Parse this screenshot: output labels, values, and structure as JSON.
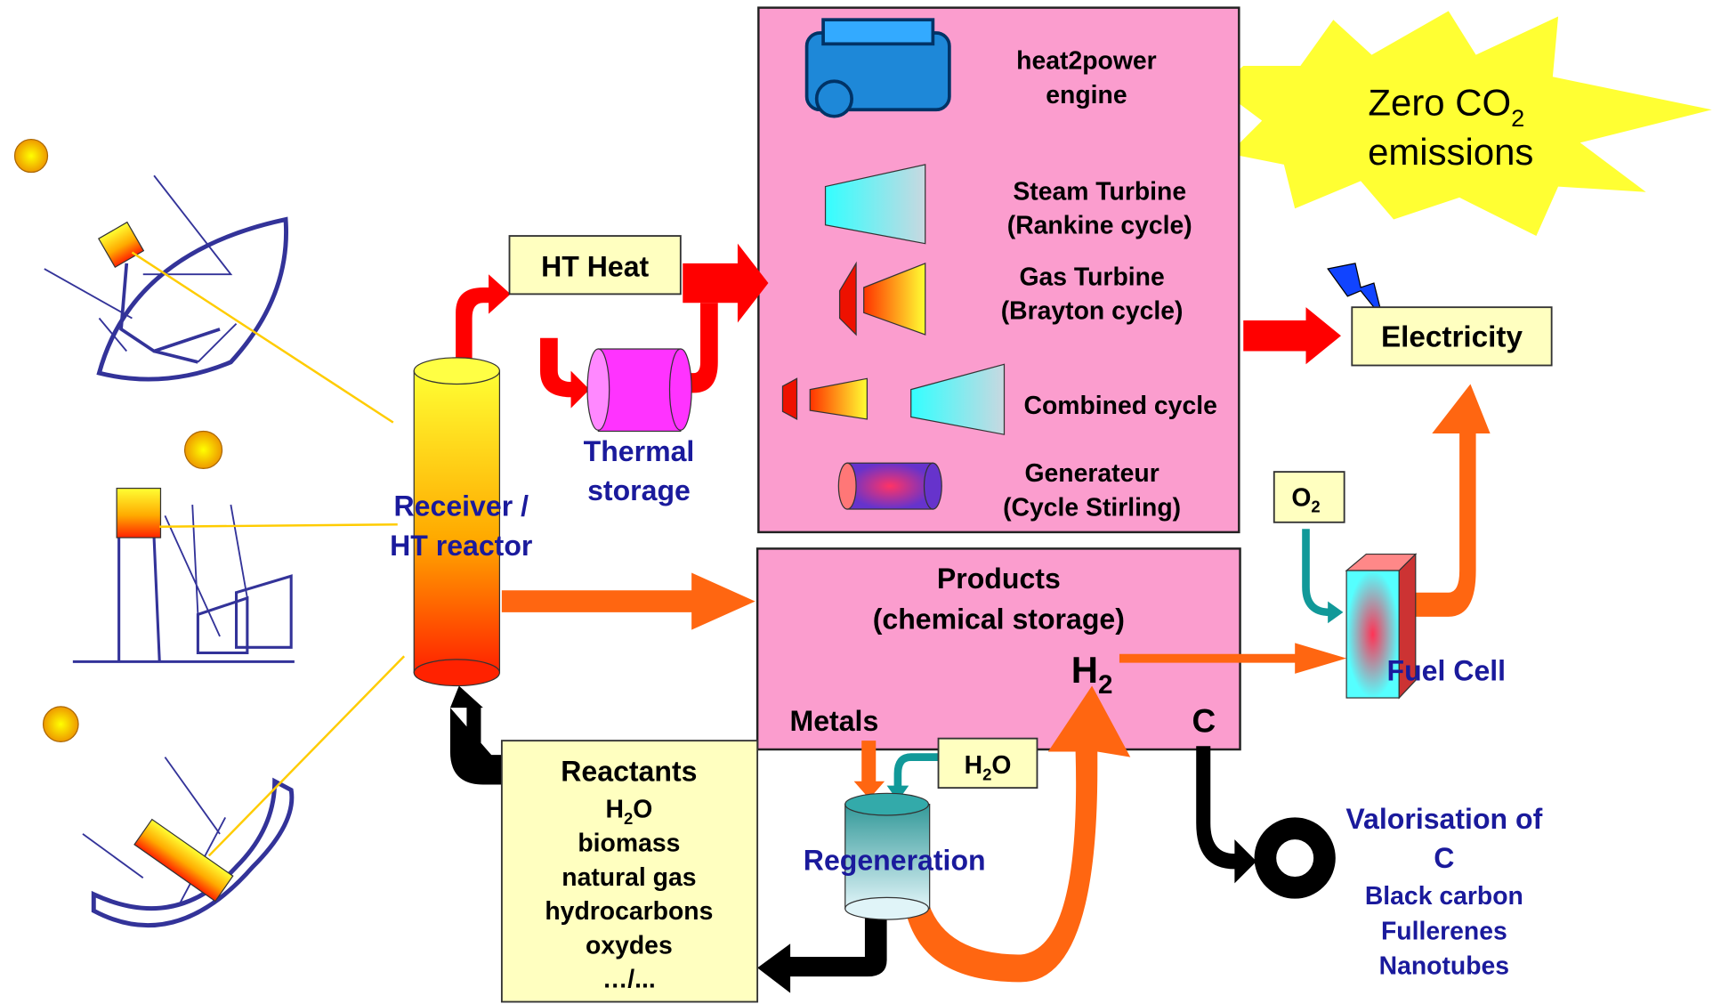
{
  "ht_heat": "HT Heat",
  "thermal_storage": [
    "Thermal",
    "storage"
  ],
  "receiver": [
    "Receiver /",
    "HT reactor"
  ],
  "engines": [
    {
      "lines": [
        "heat2power",
        "engine"
      ]
    },
    {
      "lines": [
        "Steam Turbine",
        "(Rankine cycle)"
      ]
    },
    {
      "lines": [
        "Gas Turbine",
        "(Brayton cycle)"
      ]
    },
    {
      "lines": [
        "Combined cycle"
      ]
    },
    {
      "lines": [
        "Generateur",
        "(Cycle Stirling)"
      ]
    }
  ],
  "zero_co2": {
    "text": "Zero CO",
    "sub": "2",
    "line2": "emissions"
  },
  "electricity": "Electricity",
  "o2": {
    "text": "O",
    "sub": "2"
  },
  "fuel_cell": "Fuel Cell",
  "products": {
    "lines": [
      "Products",
      "(chemical storage)"
    ],
    "h2": {
      "text": "H",
      "sub": "2"
    },
    "metals": "Metals",
    "c": "C"
  },
  "h2o_box": {
    "text": "H",
    "sub": "2",
    "rest": "O"
  },
  "regeneration": "Regeneration",
  "reactants": {
    "title": "Reactants",
    "h2o": {
      "text": "H",
      "sub": "2",
      "rest": "O"
    },
    "items": [
      "biomass",
      "natural gas",
      "hydrocarbons",
      "oxydes",
      "…/..."
    ]
  },
  "valorisation": {
    "lines": [
      "Valorisation of",
      "C"
    ],
    "items": [
      "Black carbon",
      "Fullerenes",
      "Nanotubes"
    ]
  }
}
